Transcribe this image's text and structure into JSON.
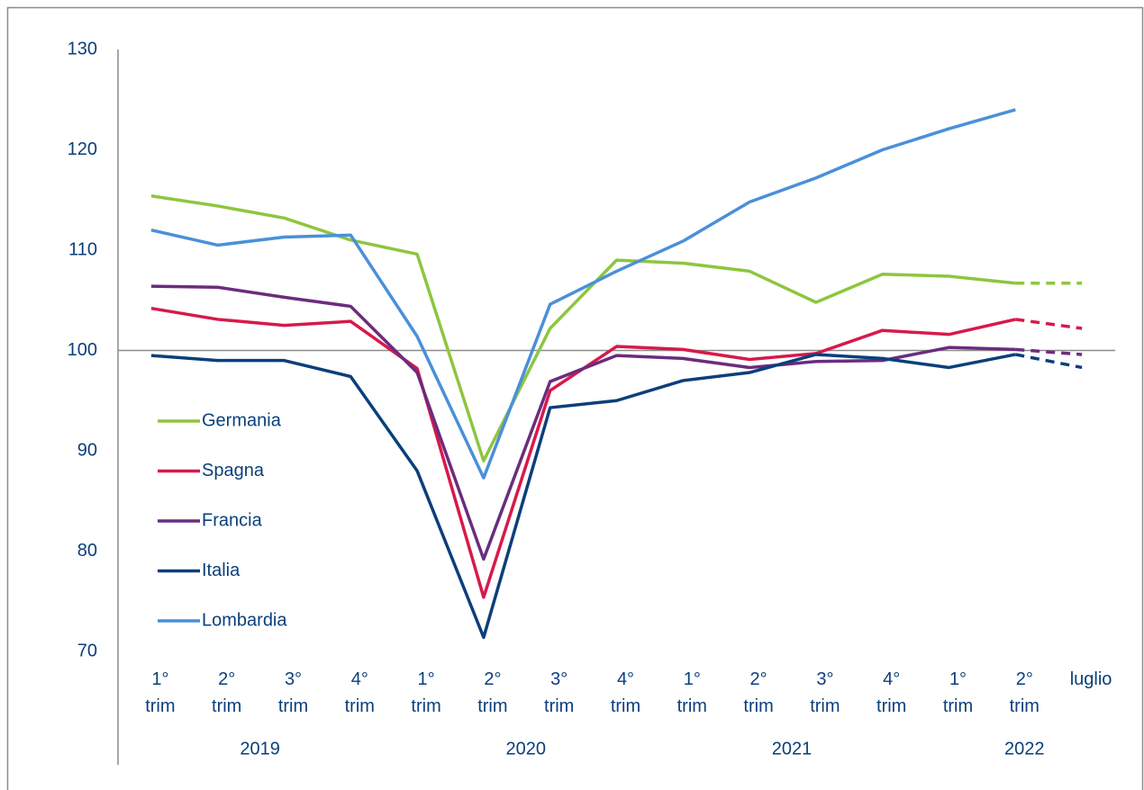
{
  "chart_data": {
    "type": "line",
    "categories": [
      "1° trim",
      "2° trim",
      "3° trim",
      "4° trim",
      "1° trim",
      "2° trim",
      "3° trim",
      "4° trim",
      "1° trim",
      "2° trim",
      "3° trim",
      "4° trim",
      "1° trim",
      "2° trim",
      "luglio"
    ],
    "year_groups": [
      {
        "label": "2019",
        "start": 0,
        "end": 3
      },
      {
        "label": "2020",
        "start": 4,
        "end": 7
      },
      {
        "label": "2021",
        "start": 8,
        "end": 11
      },
      {
        "label": "2022",
        "start": 12,
        "end": 14
      }
    ],
    "series": [
      {
        "name": "Germania",
        "color": "#8dc63f",
        "values": [
          115.4,
          114.4,
          113.2,
          111.0,
          109.6,
          89.0,
          102.2,
          109.0,
          108.7,
          107.9,
          104.8,
          107.6,
          107.4,
          106.7,
          106.7
        ]
      },
      {
        "name": "Spagna",
        "color": "#d7194b",
        "values": [
          104.2,
          103.1,
          102.5,
          102.9,
          98.2,
          75.4,
          96.0,
          100.4,
          100.1,
          99.1,
          99.7,
          102.0,
          101.6,
          103.1,
          102.2
        ]
      },
      {
        "name": "Francia",
        "color": "#6b2c7e",
        "values": [
          106.4,
          106.3,
          105.3,
          104.4,
          97.8,
          79.2,
          96.9,
          99.5,
          99.2,
          98.3,
          98.9,
          99.0,
          100.3,
          100.1,
          99.6
        ]
      },
      {
        "name": "Italia",
        "color": "#0b3f7c",
        "values": [
          99.5,
          99.0,
          99.0,
          97.4,
          88.0,
          71.4,
          94.3,
          95.0,
          97.0,
          97.8,
          99.6,
          99.2,
          98.3,
          99.6,
          98.3
        ]
      },
      {
        "name": "Lombardia",
        "color": "#4a90d9",
        "values": [
          112.0,
          110.5,
          111.3,
          111.5,
          101.4,
          87.3,
          104.6,
          107.9,
          110.9,
          114.8,
          117.2,
          120.0,
          122.1,
          124.0,
          null
        ]
      }
    ],
    "dashed_last_segment": true,
    "reference_line": 100,
    "ylim": [
      70,
      130
    ],
    "yticks": [
      70,
      80,
      90,
      100,
      110,
      120,
      130
    ],
    "grid": false,
    "legend": "left"
  }
}
